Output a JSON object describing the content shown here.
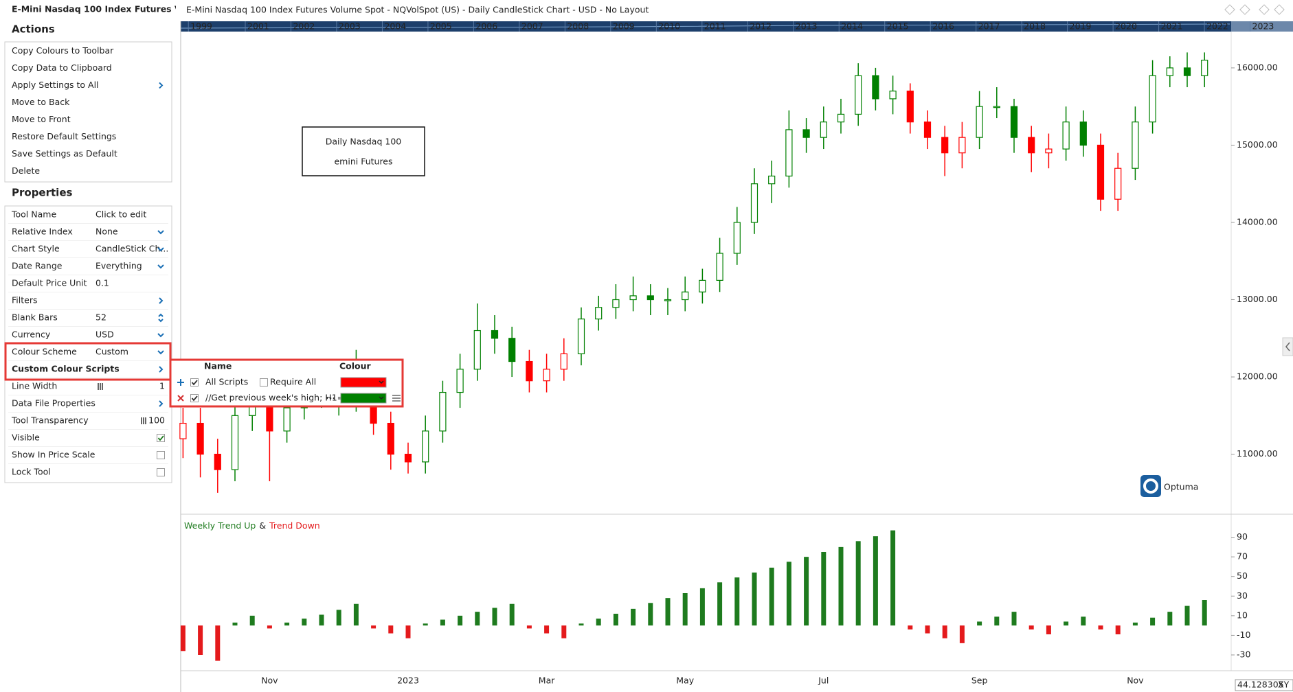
{
  "window": {
    "panel_title": "E-Mini Nasdaq 100 Index Futures V",
    "cursor_value": "44.128305",
    "cursor_mode": "XY"
  },
  "actions": {
    "title": "Actions",
    "items": [
      "Copy Colours to Toolbar",
      "Copy Data to Clipboard",
      "Apply Settings to All",
      "Move to Back",
      "Move to Front",
      "Restore Default Settings",
      "Save Settings as Default",
      "Delete"
    ]
  },
  "properties": {
    "title": "Properties",
    "rows": [
      {
        "name": "Tool Name",
        "value": "Click to edit"
      },
      {
        "name": "Relative Index",
        "value": "None"
      },
      {
        "name": "Chart Style",
        "value": "CandleStick Ch..."
      },
      {
        "name": "Date Range",
        "value": "Everything"
      },
      {
        "name": "Default Price Unit",
        "value": "0.1"
      },
      {
        "name": "Filters"
      },
      {
        "name": "Blank Bars",
        "value": "52"
      },
      {
        "name": "Currency",
        "value": "USD"
      },
      {
        "name": "Colour Scheme",
        "value": "Custom"
      },
      {
        "name": "Custom Colour Scripts"
      },
      {
        "name": "Line Width",
        "value": "1"
      },
      {
        "name": "Data File Properties"
      },
      {
        "name": "Tool Transparency",
        "value": "100"
      },
      {
        "name": "Visible",
        "checked": true
      },
      {
        "name": "Show In Price Scale",
        "checked": false
      },
      {
        "name": "Lock Tool",
        "checked": false
      }
    ]
  },
  "colour_scripts": {
    "headers": [
      "Name",
      "Colour"
    ],
    "rows": [
      {
        "name": "All Scripts",
        "enabled": true,
        "option": "Require All",
        "option_checked": false,
        "colour": "#ff0000"
      },
      {
        "name": "//Get previous week's high; H1=...",
        "enabled": true,
        "colour": "#008000"
      }
    ]
  },
  "chart_data": [
    {
      "type": "candlestick",
      "title": "E-Mini Nasdaq 100 Index Futures Volume Spot - NQVolSpot (US) - Daily CandleStick Chart - USD - No Layout",
      "years": [
        "1999",
        "2001",
        "2002",
        "2003",
        "2004",
        "2005",
        "2006",
        "2007",
        "2008",
        "2009",
        "2010",
        "2011",
        "2012",
        "2013",
        "2014",
        "2015",
        "2016",
        "2017",
        "2018",
        "2019",
        "2020",
        "2021",
        "2022",
        "2023"
      ],
      "annotation": [
        "Daily Nasdaq 100",
        "emini Futures"
      ],
      "logo": "Optuma",
      "open": [
        11200,
        11400,
        11000,
        10800,
        11500,
        11700,
        11300,
        11600,
        11900,
        11800,
        11700,
        11900,
        11400,
        11000,
        10900,
        11300,
        11800,
        12100,
        12600,
        12500,
        12200,
        11950,
        12100,
        12300,
        12750,
        12900,
        13000,
        13050,
        13000,
        13000,
        13100,
        13250,
        13600,
        14000,
        14500,
        14600,
        15200,
        15100,
        15300,
        15400,
        15900,
        15600,
        15700,
        15300,
        15100,
        14900,
        15100,
        15500,
        15500,
        15100,
        14900,
        14950,
        15300,
        15000,
        14300,
        14700,
        15300,
        15900,
        16000,
        15900
      ],
      "high": [
        11600,
        11600,
        11200,
        11700,
        11900,
        11850,
        11800,
        12050,
        12000,
        11950,
        12350,
        12000,
        11550,
        11150,
        11500,
        11950,
        12300,
        12950,
        12800,
        12650,
        12350,
        12300,
        12500,
        12900,
        13050,
        13200,
        13300,
        13200,
        13150,
        13300,
        13400,
        13800,
        14200,
        14700,
        14800,
        15450,
        15350,
        15500,
        15600,
        16060,
        16000,
        15900,
        15800,
        15450,
        15250,
        15300,
        15700,
        15750,
        15600,
        15250,
        15150,
        15500,
        15450,
        15150,
        14900,
        15500,
        16100,
        16150,
        16200,
        16200
      ],
      "low": [
        10950,
        10700,
        10500,
        10650,
        11300,
        10650,
        11150,
        11450,
        11600,
        11500,
        11550,
        11250,
        10800,
        10750,
        10750,
        11150,
        11600,
        11950,
        12300,
        12000,
        11800,
        11800,
        11950,
        12150,
        12600,
        12750,
        12850,
        12800,
        12800,
        12850,
        12950,
        13100,
        13450,
        13850,
        14250,
        14450,
        14900,
        14950,
        15150,
        15250,
        15450,
        15400,
        15150,
        14950,
        14600,
        14700,
        14950,
        15350,
        14900,
        14650,
        14700,
        14800,
        14850,
        14150,
        14150,
        14550,
        15150,
        15750,
        15750,
        15750
      ],
      "close": [
        11400,
        11000,
        10800,
        11500,
        11700,
        11300,
        11600,
        11900,
        11800,
        11700,
        11900,
        11400,
        11000,
        10900,
        11300,
        11800,
        12100,
        12600,
        12500,
        12200,
        11950,
        12100,
        12300,
        12750,
        12900,
        13000,
        13050,
        13000,
        13000,
        13100,
        13250,
        13600,
        14000,
        14500,
        14600,
        15200,
        15100,
        15300,
        15400,
        15900,
        15600,
        15700,
        15300,
        15100,
        14900,
        15100,
        15500,
        15500,
        15100,
        14900,
        14950,
        15300,
        15000,
        14300,
        14700,
        15300,
        15900,
        16000,
        15900,
        16100
      ],
      "ylim": [
        10250,
        16470
      ],
      "yticks": [
        {
          "value": 16000,
          "label": "16000.00"
        },
        {
          "value": 15000,
          "label": "15000.00"
        },
        {
          "value": 14000,
          "label": "14000.00"
        },
        {
          "value": 13000,
          "label": "13000.00"
        },
        {
          "value": 12000,
          "label": "12000.00"
        },
        {
          "value": 11000,
          "label": "11000.00"
        }
      ]
    },
    {
      "type": "bar",
      "title": [
        "Weekly Trend Up",
        "&",
        "Trend Down"
      ],
      "categories": [
        null,
        null,
        null,
        null,
        null,
        "Nov",
        null,
        null,
        null,
        null,
        null,
        null,
        null,
        "2023",
        null,
        null,
        null,
        null,
        null,
        null,
        null,
        "Mar",
        null,
        null,
        null,
        null,
        null,
        null,
        null,
        "May",
        null,
        null,
        null,
        null,
        null,
        null,
        null,
        "Jul",
        null,
        null,
        null,
        null,
        null,
        null,
        null,
        null,
        "Sep",
        null,
        null,
        null,
        null,
        null,
        null,
        null,
        null,
        "Nov",
        null,
        null,
        null,
        null
      ],
      "values": [
        -26,
        -30,
        -36,
        3,
        10,
        -3,
        3,
        7,
        11,
        16,
        22,
        -3,
        -8,
        -13,
        2,
        6,
        10,
        14,
        18,
        22,
        -3,
        -8,
        -13,
        2,
        7,
        12,
        17,
        23,
        28,
        33,
        38,
        44,
        49,
        54,
        59,
        65,
        70,
        75,
        80,
        86,
        91,
        97,
        -4,
        -8,
        -13,
        -18,
        4,
        9,
        14,
        -4,
        -9,
        4,
        9,
        -4,
        -9,
        3,
        8,
        14,
        20,
        26
      ],
      "up_color": "#1e7b1e",
      "down_color": "#e41a1c",
      "ylim": [
        -44,
        110
      ],
      "yticks": [
        90,
        70,
        50,
        30,
        10,
        -10,
        -30
      ]
    }
  ]
}
